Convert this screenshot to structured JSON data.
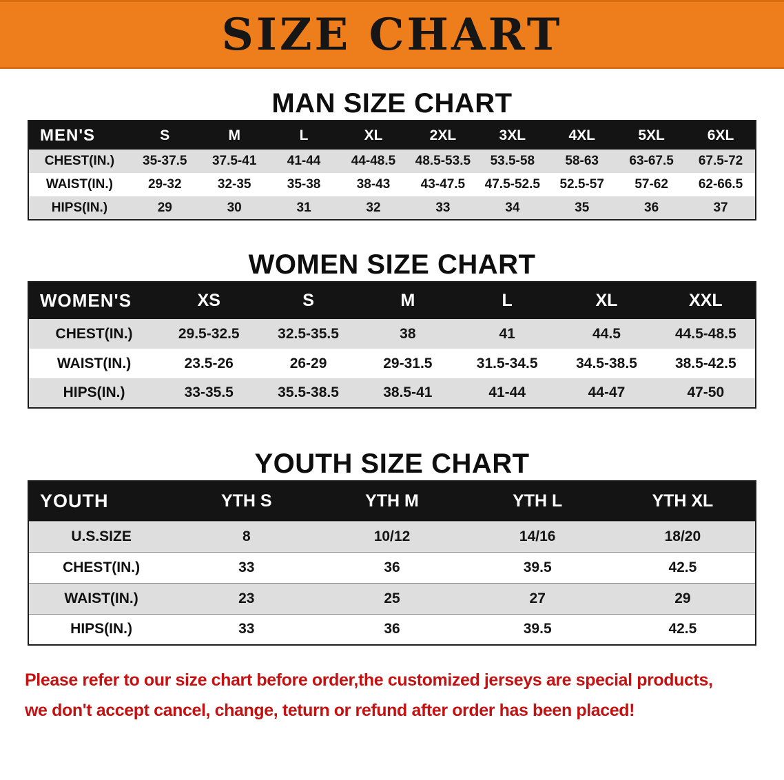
{
  "banner": {
    "title": "SIZE CHART"
  },
  "sections": [
    {
      "title": "MAN SIZE CHART",
      "header": [
        "MEN'S",
        "S",
        "M",
        "L",
        "XL",
        "2XL",
        "3XL",
        "4XL",
        "5XL",
        "6XL"
      ],
      "rows": [
        [
          "CHEST(IN.)",
          "35-37.5",
          "37.5-41",
          "41-44",
          "44-48.5",
          "48.5-53.5",
          "53.5-58",
          "58-63",
          "63-67.5",
          "67.5-72"
        ],
        [
          "WAIST(IN.)",
          "29-32",
          "32-35",
          "35-38",
          "38-43",
          "43-47.5",
          "47.5-52.5",
          "52.5-57",
          "57-62",
          "62-66.5"
        ],
        [
          "HIPS(IN.)",
          "29",
          "30",
          "31",
          "32",
          "33",
          "34",
          "35",
          "36",
          "37"
        ]
      ]
    },
    {
      "title": "WOMEN SIZE CHART",
      "header": [
        "WOMEN'S",
        "XS",
        "S",
        "M",
        "L",
        "XL",
        "XXL"
      ],
      "rows": [
        [
          "CHEST(IN.)",
          "29.5-32.5",
          "32.5-35.5",
          "38",
          "41",
          "44.5",
          "44.5-48.5"
        ],
        [
          "WAIST(IN.)",
          "23.5-26",
          "26-29",
          "29-31.5",
          "31.5-34.5",
          "34.5-38.5",
          "38.5-42.5"
        ],
        [
          "HIPS(IN.)",
          "33-35.5",
          "35.5-38.5",
          "38.5-41",
          "41-44",
          "44-47",
          "47-50"
        ]
      ]
    },
    {
      "title": "YOUTH SIZE CHART",
      "header": [
        "YOUTH",
        "YTH S",
        "YTH M",
        "YTH L",
        "YTH XL"
      ],
      "rows": [
        [
          "U.S.SIZE",
          "8",
          "10/12",
          "14/16",
          "18/20"
        ],
        [
          "CHEST(IN.)",
          "33",
          "36",
          "39.5",
          "42.5"
        ],
        [
          "WAIST(IN.)",
          "23",
          "25",
          "27",
          "29"
        ],
        [
          "HIPS(IN.)",
          "33",
          "36",
          "39.5",
          "42.5"
        ]
      ]
    }
  ],
  "footer": {
    "line1": "Please refer to our size chart before order,the customized jerseys are special products,",
    "line2": "we don't accept cancel, change, teturn or refund after order has been placed!"
  },
  "colors": {
    "banner_bg": "#ee7e1b",
    "table_header_bg": "#141414",
    "row_stripe": "#dedede",
    "footer_text": "#c41212"
  }
}
